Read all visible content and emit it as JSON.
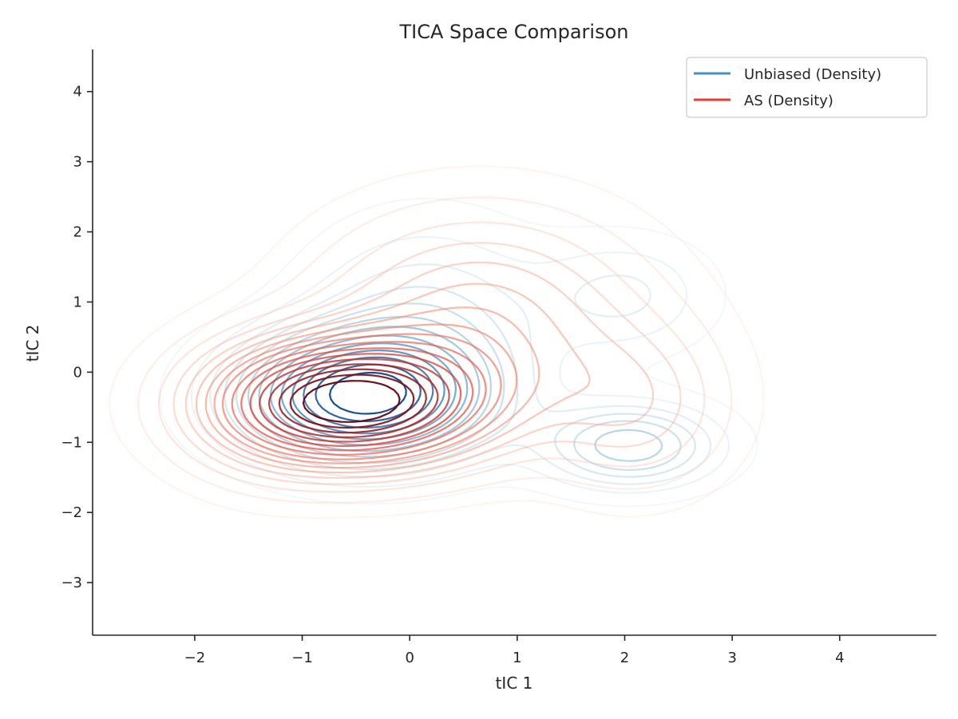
{
  "chart_data": {
    "type": "contour",
    "title": "TICA Space Comparison",
    "xlabel": "tIC 1",
    "ylabel": "tIC 2",
    "xlim": [
      -2.95,
      4.9
    ],
    "ylim": [
      -3.75,
      4.6
    ],
    "xticks": [
      -2,
      -1,
      0,
      1,
      2,
      3,
      4
    ],
    "yticks": [
      -3,
      -2,
      -1,
      0,
      1,
      2,
      3,
      4
    ],
    "grid": false,
    "legend_position": "top-right",
    "series": [
      {
        "name": "Unbiased (Density)",
        "color": "#4292c6",
        "colormap": "Blues",
        "components": [
          {
            "mean": [
              -0.45,
              -0.35
            ],
            "sd": [
              0.75,
              0.6
            ],
            "weight": 0.55
          },
          {
            "mean": [
              0.15,
              0.7
            ],
            "sd": [
              0.75,
              0.95
            ],
            "weight": 0.22
          },
          {
            "mean": [
              2.05,
              -1.05
            ],
            "sd": [
              0.55,
              0.4
            ],
            "weight": 0.12
          },
          {
            "mean": [
              2.0,
              1.1
            ],
            "sd": [
              0.55,
              0.55
            ],
            "weight": 0.07
          }
        ],
        "levels": [
          0.04,
          0.1,
          0.16,
          0.22,
          0.28,
          0.35,
          0.42,
          0.5,
          0.58,
          0.66,
          0.74,
          0.82,
          0.9
        ]
      },
      {
        "name": "AS (Density)",
        "color": "#ef3b2c",
        "colormap": "Reds",
        "components": [
          {
            "mean": [
              -0.5,
              -0.45
            ],
            "sd": [
              0.85,
              0.6
            ],
            "weight": 0.5
          },
          {
            "mean": [
              0.65,
              0.8
            ],
            "sd": [
              1.0,
              1.0
            ],
            "weight": 0.33
          },
          {
            "mean": [
              2.1,
              -0.5
            ],
            "sd": [
              0.6,
              0.8
            ],
            "weight": 0.1
          },
          {
            "mean": [
              -1.3,
              -0.5
            ],
            "sd": [
              0.6,
              0.7
            ],
            "weight": 0.07
          }
        ],
        "levels": [
          0.03,
          0.07,
          0.12,
          0.17,
          0.22,
          0.27,
          0.32,
          0.37,
          0.42,
          0.48,
          0.54,
          0.6,
          0.66,
          0.72,
          0.78,
          0.84,
          0.9
        ]
      }
    ]
  }
}
